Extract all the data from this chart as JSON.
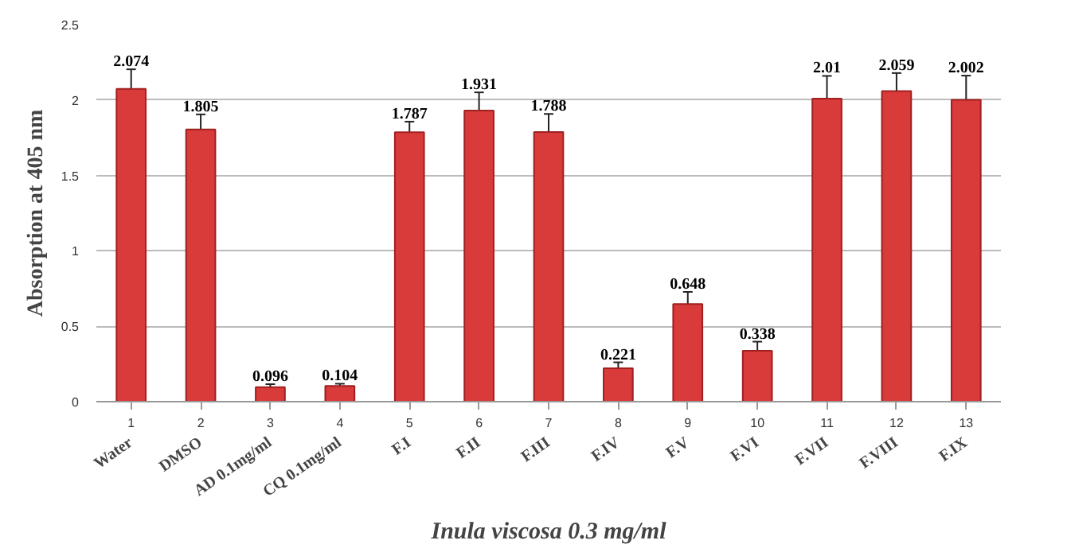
{
  "chart_data": {
    "type": "bar",
    "xlabel": "Inula viscosa 0.3 mg/ml",
    "ylabel": "Absorption at 405 nm",
    "x": [
      1,
      2,
      3,
      4,
      5,
      6,
      7,
      8,
      9,
      10,
      11,
      12,
      13
    ],
    "values": [
      2.074,
      1.805,
      0.096,
      0.104,
      1.787,
      1.931,
      1.788,
      0.221,
      0.648,
      0.338,
      2.01,
      2.059,
      2.002
    ],
    "errors": [
      0.13,
      0.1,
      0.02,
      0.015,
      0.07,
      0.12,
      0.12,
      0.04,
      0.08,
      0.06,
      0.15,
      0.12,
      0.16
    ],
    "value_labels": [
      "2.074",
      "1.805",
      "0.096",
      "0.104",
      "1.787",
      "1.931",
      "1.788",
      "0.221",
      "0.648",
      "0.338",
      "2.01",
      "2.059",
      "2.002"
    ],
    "color": "#d93a3a",
    "xlim": [
      0.5,
      13.5
    ],
    "xticks": [
      1,
      2,
      3,
      4,
      5,
      6,
      7,
      8,
      9,
      10,
      11,
      12,
      13
    ],
    "ylim": [
      0,
      2.5
    ],
    "yticks": [
      0,
      0.5,
      1,
      1.5,
      2,
      2.5
    ],
    "grid": "y",
    "annotations": [
      "Water",
      "DMSO",
      "AD 0.1mg/ml",
      "CQ 0.1mg/ml",
      "F.I",
      "F.II",
      "F.III",
      "F.IV",
      "F.V",
      "F.VI",
      "F.VII",
      "F.VIII",
      "F.IX"
    ]
  }
}
